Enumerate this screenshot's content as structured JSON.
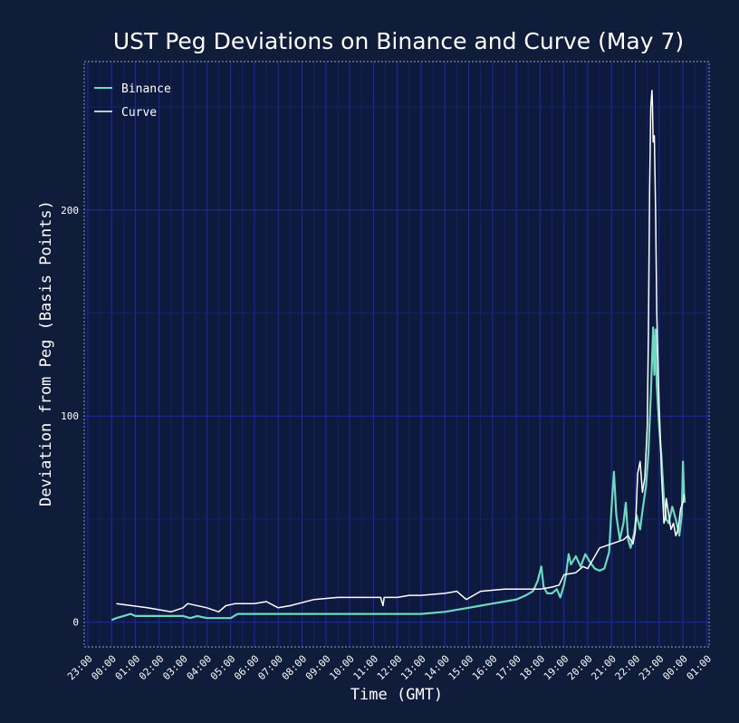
{
  "colors": {
    "background": "#0f1c3a",
    "plot_background": "#0d1a3e",
    "grid_major": "#1c2aa8",
    "grid_minor": "#16236a",
    "binance": "#6ed8c0",
    "curve": "#ffffff",
    "text": "#ffffff"
  },
  "chart_data": {
    "type": "line",
    "title": "UST Peg Deviations on Binance and Curve (May 7)",
    "xlabel": "Time (GMT)",
    "ylabel": "Deviation from Peg (Basis Points)",
    "x_unit": "hours since 00:00 GMT May 7",
    "xlim": [
      -1.15,
      25.1
    ],
    "ylim": [
      -12,
      272
    ],
    "x_ticks": [
      -1,
      0,
      1,
      2,
      3,
      4,
      5,
      6,
      7,
      8,
      9,
      10,
      11,
      12,
      13,
      14,
      15,
      16,
      17,
      18,
      19,
      20,
      21,
      22,
      23,
      24,
      25
    ],
    "x_tick_labels": [
      "23:00",
      "00:00",
      "01:00",
      "02:00",
      "03:00",
      "04:00",
      "05:00",
      "06:00",
      "07:00",
      "08:00",
      "09:00",
      "10:00",
      "11:00",
      "12:00",
      "13:00",
      "14:00",
      "15:00",
      "16:00",
      "17:00",
      "18:00",
      "19:00",
      "20:00",
      "21:00",
      "22:00",
      "23:00",
      "00:00",
      "01:00"
    ],
    "y_ticks": [
      0,
      100,
      200
    ],
    "y_tick_labels": [
      "0",
      "100",
      "200"
    ],
    "y_minor_ticks": [
      50,
      150,
      250
    ],
    "legend_position": "top-left",
    "series": [
      {
        "name": "Binance",
        "points": [
          [
            0.0,
            1
          ],
          [
            0.2,
            2
          ],
          [
            0.5,
            3
          ],
          [
            0.8,
            4
          ],
          [
            1.0,
            3
          ],
          [
            1.5,
            3
          ],
          [
            2.0,
            3
          ],
          [
            3.0,
            3
          ],
          [
            3.3,
            2
          ],
          [
            3.6,
            3
          ],
          [
            4.0,
            2
          ],
          [
            4.5,
            2
          ],
          [
            5.0,
            2
          ],
          [
            5.3,
            4
          ],
          [
            6.0,
            4
          ],
          [
            7.0,
            4
          ],
          [
            8.0,
            4
          ],
          [
            9.0,
            4
          ],
          [
            10.0,
            4
          ],
          [
            11.0,
            4
          ],
          [
            12.0,
            4
          ],
          [
            13.0,
            4
          ],
          [
            14.0,
            5
          ],
          [
            14.5,
            6
          ],
          [
            15.0,
            7
          ],
          [
            15.5,
            8
          ],
          [
            16.0,
            9
          ],
          [
            16.5,
            10
          ],
          [
            17.0,
            11
          ],
          [
            17.4,
            13
          ],
          [
            17.7,
            15
          ],
          [
            17.9,
            20
          ],
          [
            18.05,
            27
          ],
          [
            18.15,
            17
          ],
          [
            18.3,
            14
          ],
          [
            18.5,
            14
          ],
          [
            18.7,
            16
          ],
          [
            18.85,
            12
          ],
          [
            19.0,
            18
          ],
          [
            19.1,
            24
          ],
          [
            19.2,
            33
          ],
          [
            19.3,
            28
          ],
          [
            19.5,
            32
          ],
          [
            19.7,
            27
          ],
          [
            19.9,
            33
          ],
          [
            20.1,
            29
          ],
          [
            20.3,
            26
          ],
          [
            20.5,
            25
          ],
          [
            20.7,
            26
          ],
          [
            20.9,
            34
          ],
          [
            21.0,
            55
          ],
          [
            21.1,
            73
          ],
          [
            21.2,
            52
          ],
          [
            21.35,
            40
          ],
          [
            21.5,
            48
          ],
          [
            21.6,
            58
          ],
          [
            21.7,
            40
          ],
          [
            21.8,
            36
          ],
          [
            21.95,
            43
          ],
          [
            22.05,
            52
          ],
          [
            22.2,
            45
          ],
          [
            22.3,
            54
          ],
          [
            22.45,
            66
          ],
          [
            22.55,
            82
          ],
          [
            22.65,
            110
          ],
          [
            22.75,
            143
          ],
          [
            22.8,
            120
          ],
          [
            22.85,
            142
          ],
          [
            22.9,
            115
          ],
          [
            23.0,
            95
          ],
          [
            23.1,
            80
          ],
          [
            23.2,
            60
          ],
          [
            23.3,
            50
          ],
          [
            23.4,
            48
          ],
          [
            23.55,
            56
          ],
          [
            23.7,
            50
          ],
          [
            23.85,
            42
          ],
          [
            23.95,
            52
          ],
          [
            24.0,
            78
          ],
          [
            24.05,
            62
          ],
          [
            24.08,
            58
          ]
        ]
      },
      {
        "name": "Curve",
        "points": [
          [
            0.2,
            9
          ],
          [
            1.5,
            7
          ],
          [
            2.5,
            5
          ],
          [
            3.0,
            7
          ],
          [
            3.2,
            9
          ],
          [
            4.0,
            7
          ],
          [
            4.5,
            5
          ],
          [
            4.8,
            8
          ],
          [
            5.2,
            9
          ],
          [
            6.0,
            9
          ],
          [
            6.5,
            10
          ],
          [
            7.0,
            7
          ],
          [
            7.5,
            8
          ],
          [
            8.5,
            11
          ],
          [
            9.5,
            12
          ],
          [
            10.5,
            12
          ],
          [
            11.0,
            12
          ],
          [
            11.3,
            12
          ],
          [
            11.4,
            8
          ],
          [
            11.45,
            12
          ],
          [
            12.0,
            12
          ],
          [
            12.5,
            13
          ],
          [
            13.0,
            13
          ],
          [
            14.0,
            14
          ],
          [
            14.5,
            15
          ],
          [
            14.9,
            11
          ],
          [
            15.2,
            13
          ],
          [
            15.5,
            15
          ],
          [
            16.5,
            16
          ],
          [
            17.5,
            16
          ],
          [
            18.0,
            16
          ],
          [
            18.5,
            17
          ],
          [
            18.8,
            18
          ],
          [
            19.0,
            23
          ],
          [
            19.5,
            24
          ],
          [
            19.8,
            27
          ],
          [
            20.0,
            26
          ],
          [
            20.5,
            36
          ],
          [
            21.0,
            38
          ],
          [
            21.5,
            40
          ],
          [
            21.7,
            42
          ],
          [
            21.9,
            38
          ],
          [
            22.0,
            44
          ],
          [
            22.1,
            72
          ],
          [
            22.2,
            78
          ],
          [
            22.3,
            63
          ],
          [
            22.4,
            70
          ],
          [
            22.5,
            95
          ],
          [
            22.55,
            140
          ],
          [
            22.6,
            210
          ],
          [
            22.65,
            250
          ],
          [
            22.7,
            258
          ],
          [
            22.72,
            252
          ],
          [
            22.75,
            233
          ],
          [
            22.8,
            236
          ],
          [
            22.85,
            200
          ],
          [
            22.9,
            150
          ],
          [
            23.0,
            105
          ],
          [
            23.05,
            90
          ],
          [
            23.1,
            72
          ],
          [
            23.2,
            48
          ],
          [
            23.25,
            50
          ],
          [
            23.3,
            60
          ],
          [
            23.5,
            45
          ],
          [
            23.6,
            48
          ],
          [
            23.7,
            42
          ],
          [
            23.8,
            45
          ],
          [
            23.9,
            55
          ],
          [
            24.0,
            58
          ],
          [
            24.05,
            62
          ]
        ]
      }
    ]
  }
}
